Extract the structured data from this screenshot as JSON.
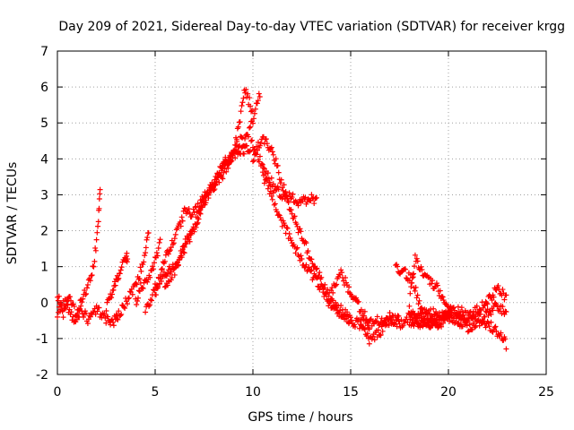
{
  "chart_data": {
    "type": "scatter",
    "title": "Day 209 of 2021, Sidereal Day-to-day VTEC variation (SDTVAR) for receiver krgg",
    "xlabel": "GPS time / hours",
    "ylabel": "SDTVAR / TECUs",
    "xlim": [
      0,
      25
    ],
    "ylim": [
      -2,
      7
    ],
    "xticks": [
      "0",
      "5",
      "10",
      "15",
      "20",
      "25"
    ],
    "yticks": [
      "-2",
      "-1",
      "0",
      "1",
      "2",
      "3",
      "4",
      "5",
      "6",
      "7"
    ],
    "grid": true,
    "marker": "+",
    "series": [
      {
        "name": "SDTVAR",
        "color": "#ff0000",
        "tracks": [
          {
            "x": [
              0.0,
              0.3,
              0.6,
              1.0,
              1.3,
              1.6,
              1.9,
              2.1,
              2.2
            ],
            "y": [
              0.2,
              -0.3,
              0.1,
              -0.4,
              0.2,
              0.5,
              1.2,
              2.3,
              3.3
            ]
          },
          {
            "x": [
              0.0,
              0.4,
              0.8,
              1.2,
              1.6,
              2.0,
              2.4,
              2.8,
              3.1
            ],
            "y": [
              -0.3,
              0.0,
              -0.5,
              -0.2,
              -0.5,
              -0.2,
              -0.4,
              -0.6,
              -0.3
            ]
          },
          {
            "x": [
              2.5,
              2.8,
              3.0,
              3.2,
              3.5,
              3.6
            ],
            "y": [
              -0.1,
              0.3,
              0.6,
              0.9,
              1.2,
              1.3
            ]
          },
          {
            "x": [
              3.0,
              3.4,
              3.8,
              4.2,
              4.5,
              4.7
            ],
            "y": [
              -0.5,
              -0.1,
              0.3,
              0.8,
              1.4,
              2.2
            ]
          },
          {
            "x": [
              4.0,
              4.3,
              4.6,
              5.0,
              5.3
            ],
            "y": [
              0.0,
              0.5,
              0.6,
              1.2,
              1.7
            ]
          },
          {
            "x": [
              4.5,
              5.0,
              5.5,
              6.0,
              6.5,
              7.0,
              7.5,
              8.0,
              8.5,
              9.0,
              9.5,
              10.0,
              10.4
            ],
            "y": [
              -0.2,
              0.4,
              0.8,
              1.0,
              1.5,
              2.1,
              2.8,
              3.3,
              3.8,
              4.1,
              4.3,
              5.1,
              5.9
            ]
          },
          {
            "x": [
              5.0,
              5.5,
              6.0,
              6.5,
              7.0,
              7.5,
              8.0,
              8.5,
              9.0,
              9.5
            ],
            "y": [
              0.2,
              1.2,
              1.8,
              2.5,
              2.5,
              2.9,
              3.3,
              3.6,
              4.2,
              4.6
            ]
          },
          {
            "x": [
              5.5,
              6.0,
              6.5,
              7.0,
              7.5,
              8.0,
              8.5,
              9.0,
              9.3,
              9.6,
              10.0
            ],
            "y": [
              0.5,
              0.9,
              1.6,
              2.1,
              2.9,
              3.2,
              3.9,
              4.1,
              5.0,
              5.9,
              5.3
            ]
          },
          {
            "x": [
              9.5,
              10.0,
              10.5,
              11.0,
              11.5,
              12.0,
              12.5,
              13.0,
              13.3
            ],
            "y": [
              4.2,
              4.4,
              3.8,
              3.3,
              3.0,
              2.9,
              2.8,
              2.9,
              2.8
            ]
          },
          {
            "x": [
              10.0,
              10.5,
              11.0,
              11.5,
              12.0,
              12.5,
              13.0,
              13.5,
              14.0,
              14.5,
              15.0,
              15.5,
              16.0
            ],
            "y": [
              4.0,
              4.6,
              4.2,
              3.3,
              2.5,
              1.8,
              1.2,
              0.6,
              0.1,
              -0.2,
              -0.5,
              -0.6,
              -0.6
            ]
          },
          {
            "x": [
              10.5,
              11.0,
              11.5,
              12.0,
              12.5,
              13.0,
              13.5,
              14.0,
              14.5,
              15.0
            ],
            "y": [
              3.5,
              3.0,
              2.2,
              1.7,
              1.2,
              0.8,
              0.4,
              -0.1,
              -0.3,
              -0.5
            ]
          },
          {
            "x": [
              14.0,
              14.5,
              15.0,
              15.5,
              16.0,
              16.5,
              17.0,
              17.5
            ],
            "y": [
              0.3,
              0.8,
              0.3,
              -0.2,
              -0.6,
              -0.5,
              -0.5,
              -0.5
            ]
          },
          {
            "x": [
              15.5,
              16.0,
              16.5,
              17.0,
              17.5,
              18.0,
              18.5,
              19.0,
              19.5,
              20.0,
              20.5,
              21.0,
              21.5,
              22.0,
              22.5,
              23.0
            ],
            "y": [
              -0.6,
              -1.1,
              -0.8,
              -0.4,
              -0.6,
              -0.4,
              -0.6,
              -0.6,
              -0.5,
              -0.2,
              -0.4,
              -0.5,
              -0.4,
              -0.6,
              -0.8,
              -1.2
            ]
          },
          {
            "x": [
              17.3,
              17.8,
              18.2,
              18.6,
              19.0,
              19.5
            ],
            "y": [
              1.0,
              0.8,
              0.6,
              -0.2,
              -0.5,
              -0.7
            ]
          },
          {
            "x": [
              18.0,
              18.3,
              18.6,
              19.0,
              19.4,
              19.8,
              20.2
            ],
            "y": [
              0.0,
              1.3,
              0.9,
              0.6,
              0.4,
              0.0,
              -0.3
            ]
          },
          {
            "x": [
              18.0,
              18.5,
              19.0,
              19.5,
              20.0,
              20.5,
              21.0,
              21.5,
              22.0,
              22.5,
              23.0
            ],
            "y": [
              -0.4,
              -0.3,
              -0.2,
              -0.4,
              -0.3,
              -0.2,
              -0.4,
              -0.2,
              0.0,
              0.4,
              0.1
            ]
          },
          {
            "x": [
              18.0,
              18.5,
              19.0,
              19.5,
              20.0,
              20.5,
              21.0,
              21.5,
              22.0,
              22.5,
              23.0
            ],
            "y": [
              -0.6,
              -0.5,
              -0.6,
              -0.6,
              -0.4,
              -0.5,
              -0.7,
              -0.6,
              -0.3,
              -0.1,
              -0.3
            ]
          }
        ]
      }
    ]
  }
}
